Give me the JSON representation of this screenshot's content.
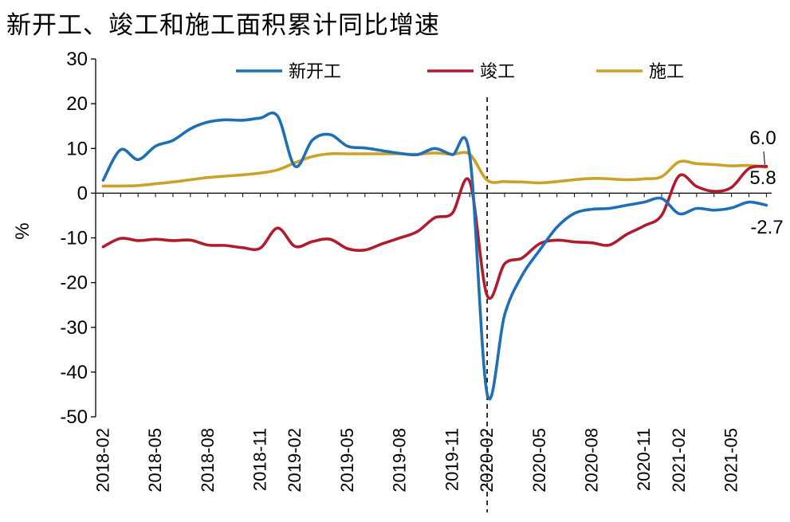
{
  "chart_data": {
    "type": "line",
    "title": "新开工、竣工和施工面积累计同比增速",
    "ylabel": "%",
    "xlabel": "",
    "ylim": [
      -50,
      30
    ],
    "yticks": [
      "30",
      "20",
      "10",
      "0",
      "-10",
      "-20",
      "-30",
      "-40",
      "-50"
    ],
    "x_tick_labels": [
      "2018-02",
      "2018-05",
      "2018-08",
      "2018-11",
      "2019-02",
      "2019-05",
      "2019-08",
      "2019-11",
      "2020-02",
      "2020-05",
      "2020-08",
      "2020-11",
      "2021-02",
      "2021-05"
    ],
    "x": [
      "2018-02",
      "2018-03",
      "2018-04",
      "2018-05",
      "2018-06",
      "2018-07",
      "2018-08",
      "2018-09",
      "2018-10",
      "2018-11",
      "2018-12",
      "2019-02",
      "2019-03",
      "2019-04",
      "2019-05",
      "2019-06",
      "2019-07",
      "2019-08",
      "2019-09",
      "2019-10",
      "2019-11",
      "2019-12",
      "2020-02",
      "2020-03",
      "2020-04",
      "2020-05",
      "2020-06",
      "2020-07",
      "2020-08",
      "2020-09",
      "2020-10",
      "2020-11",
      "2020-12",
      "2021-02",
      "2021-03",
      "2021-04",
      "2021-05",
      "2021-06",
      "2021-07"
    ],
    "series": [
      {
        "name": "新开工",
        "color": "#1f6fb5",
        "values": [
          2.9,
          9.7,
          7.5,
          10.5,
          11.8,
          14.4,
          15.9,
          16.4,
          16.3,
          16.8,
          17.2,
          6.0,
          11.9,
          13.1,
          10.5,
          10.1,
          9.5,
          8.9,
          8.6,
          10.0,
          8.6,
          8.5,
          -44.9,
          -27.2,
          -18.4,
          -12.8,
          -7.6,
          -4.5,
          -3.6,
          -3.4,
          -2.7,
          -2.0,
          -1.2,
          -4.6,
          -3.4,
          -3.8,
          -3.3,
          -2.0,
          -2.7
        ]
      },
      {
        "name": "竣工",
        "color": "#b01c2e",
        "values": [
          -12.0,
          -10.1,
          -10.6,
          -10.3,
          -10.6,
          -10.5,
          -11.6,
          -11.7,
          -12.2,
          -12.3,
          -7.8,
          -11.9,
          -10.8,
          -10.3,
          -12.4,
          -12.7,
          -11.3,
          -10.0,
          -8.6,
          -5.5,
          -4.5,
          2.6,
          -22.9,
          -15.8,
          -14.5,
          -11.3,
          -10.5,
          -10.9,
          -11.1,
          -11.6,
          -9.2,
          -7.3,
          -4.9,
          3.9,
          1.5,
          0.4,
          1.3,
          5.5,
          6.0
        ]
      },
      {
        "name": "施工",
        "color": "#c9a227",
        "values": [
          1.6,
          1.6,
          1.7,
          2.1,
          2.5,
          3.0,
          3.5,
          3.8,
          4.1,
          4.5,
          5.2,
          6.8,
          8.2,
          8.8,
          8.8,
          8.8,
          8.8,
          8.8,
          8.7,
          9.0,
          8.7,
          8.7,
          2.9,
          2.6,
          2.5,
          2.3,
          2.6,
          3.0,
          3.3,
          3.2,
          3.0,
          3.2,
          3.7,
          7.0,
          6.6,
          6.4,
          6.1,
          6.2,
          5.8
        ]
      }
    ],
    "annotations": [
      {
        "label": "6.0"
      },
      {
        "label": "5.8"
      },
      {
        "label": "-2.7"
      }
    ],
    "reference_line_at": "2020-02",
    "legend_position": "top",
    "grid": false
  }
}
